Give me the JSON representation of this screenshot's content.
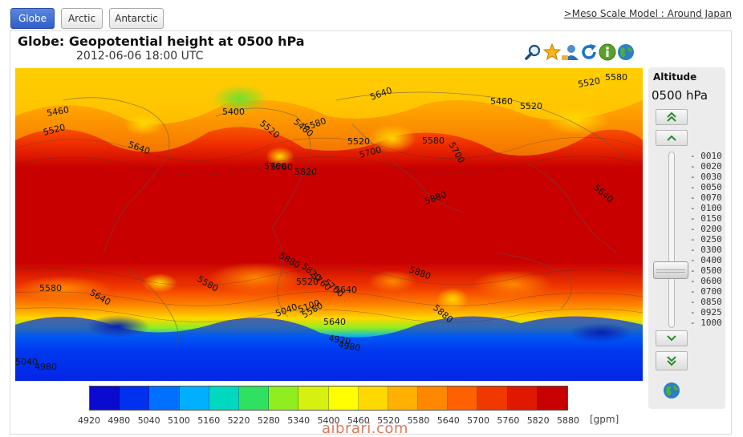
{
  "tabs": [
    {
      "label": "Globe",
      "active": true
    },
    {
      "label": "Arctic",
      "active": false
    },
    {
      "label": "Antarctic",
      "active": false
    }
  ],
  "top_link": ">Meso Scale Model : Around Japan",
  "title": "Globe: Geopotential height at 0500 hPa",
  "datetime": "2012-06-06 18:00 UTC",
  "toolbar": {
    "icons": [
      "zoom-icon",
      "favorite-star-icon",
      "user-icon",
      "refresh-icon",
      "info-icon",
      "globe-icon"
    ]
  },
  "sidebar": {
    "label": "Altitude",
    "current_value": "0500 hPa",
    "levels": [
      "- 0010",
      "- 0020",
      "- 0030",
      "- 0050",
      "- 0070",
      "- 0100",
      "- 0150",
      "- 0200",
      "- 0250",
      "- 0300",
      "- 0400",
      "- 0500",
      "- 0600",
      "- 0700",
      "- 0850",
      "- 0925",
      "- 1000"
    ],
    "selected_level": "- 0500",
    "buttons": [
      "top-level",
      "level-up",
      "level-down",
      "bottom-level"
    ]
  },
  "map": {
    "contour_labels": [
      "5520",
      "5580",
      "5640",
      "5460",
      "5520",
      "5400",
      "5460",
      "5520",
      "5580",
      "5640",
      "5700",
      "5760",
      "5820",
      "5880",
      "5520",
      "5460",
      "5520",
      "5580",
      "5700",
      "5760",
      "5640",
      "5880",
      "5880",
      "5820",
      "5760",
      "5700",
      "5640",
      "5580",
      "5520",
      "5880",
      "5640",
      "5580",
      "5640",
      "5580",
      "5040",
      "4980",
      "4920",
      "4980",
      "5040",
      "5100"
    ]
  },
  "colorbar": {
    "labels": [
      "4920",
      "4980",
      "5040",
      "5100",
      "5160",
      "5220",
      "5280",
      "5340",
      "5400",
      "5460",
      "5520",
      "5580",
      "5640",
      "5700",
      "5760",
      "5820",
      "5880"
    ],
    "colors": [
      "#0a0ad0",
      "#0030f0",
      "#0070ff",
      "#00b0ff",
      "#00d8c0",
      "#30e060",
      "#90ee20",
      "#d8f010",
      "#ffff00",
      "#ffd800",
      "#ffb000",
      "#ff8800",
      "#ff6000",
      "#f03800",
      "#e01800",
      "#c80000"
    ],
    "unit": "[gpm]"
  },
  "watermark": "aibrari.com"
}
